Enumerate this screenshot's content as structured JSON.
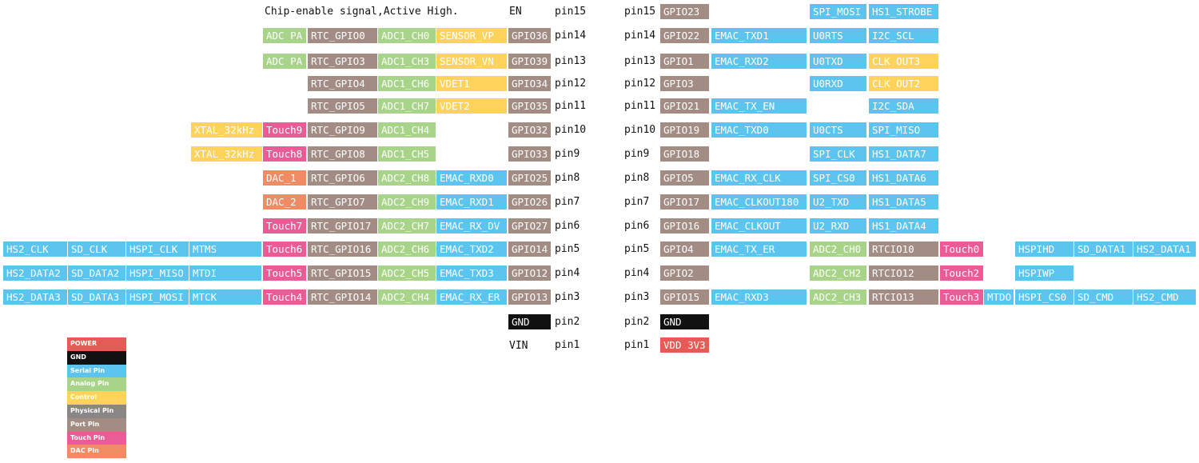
{
  "colors": {
    "power": "#e55b55",
    "gnd": "#111111",
    "serial": "#5bc4ef",
    "analog": "#a8d489",
    "control": "#fdd35c",
    "physical": "#8a8686",
    "port": "#a38c83",
    "touch": "#ea5c96",
    "dac": "#f08c64"
  },
  "header": {
    "chip_enable": "Chip-enable signal,Active High.",
    "en": "EN"
  },
  "left_side": {
    "vin": "VIN",
    "pins": [
      "pin15",
      "pin14",
      "pin13",
      "pin12",
      "pin11",
      "pin10",
      "pin9",
      "pin8",
      "pin7",
      "pin6",
      "pin5",
      "pin4",
      "pin3",
      "pin2",
      "pin1"
    ],
    "rows": [
      [],
      [
        [
          "ADC PA",
          "analog"
        ],
        [
          "RTC_GPIO0",
          "port"
        ],
        [
          "ADC1_CH0",
          "analog"
        ],
        [
          "SENSOR_VP",
          "control"
        ],
        [
          "GPIO36",
          "port"
        ]
      ],
      [
        [
          "ADC PA",
          "analog"
        ],
        [
          "RTC_GPIO3",
          "port"
        ],
        [
          "ADC1_CH3",
          "analog"
        ],
        [
          "SENSOR_VN",
          "control"
        ],
        [
          "GPIO39",
          "port"
        ]
      ],
      [
        [
          "RTC_GPIO4",
          "port"
        ],
        [
          "ADC1_CH6",
          "analog"
        ],
        [
          "VDET1",
          "control"
        ],
        [
          "GPIO34",
          "port"
        ]
      ],
      [
        [
          "RTC_GPIO5",
          "port"
        ],
        [
          "ADC1_CH7",
          "analog"
        ],
        [
          "VDET2",
          "control"
        ],
        [
          "GPIO35",
          "port"
        ]
      ],
      [
        [
          "XTAL_32kHz",
          "control"
        ],
        [
          "Touch9",
          "touch"
        ],
        [
          "RTC_GPIO9",
          "port"
        ],
        [
          "ADC1_CH4",
          "analog"
        ],
        [
          "GPIO32",
          "port"
        ]
      ],
      [
        [
          "XTAL_32kHz",
          "control"
        ],
        [
          "Touch8",
          "touch"
        ],
        [
          "RTC_GPIO8",
          "port"
        ],
        [
          "ADC1_CH5",
          "analog"
        ],
        [
          "GPIO33",
          "port"
        ]
      ],
      [
        [
          "DAC_1",
          "dac"
        ],
        [
          "RTC_GPIO6",
          "port"
        ],
        [
          "ADC2_CH8",
          "analog"
        ],
        [
          "EMAC_RXD0",
          "serial"
        ],
        [
          "GPIO25",
          "port"
        ]
      ],
      [
        [
          "DAC_2",
          "dac"
        ],
        [
          "RTC_GPIO7",
          "port"
        ],
        [
          "ADC2_CH9",
          "analog"
        ],
        [
          "EMAC_RXD1",
          "serial"
        ],
        [
          "GPIO26",
          "port"
        ]
      ],
      [
        [
          "Touch7",
          "touch"
        ],
        [
          "RTC_GPIO17",
          "port"
        ],
        [
          "ADC2_CH7",
          "analog"
        ],
        [
          "EMAC_RX_DV",
          "serial"
        ],
        [
          "GPIO27",
          "port"
        ]
      ],
      [
        [
          "HS2_CLK",
          "serial"
        ],
        [
          "SD_CLK",
          "serial"
        ],
        [
          "HSPI_CLK",
          "serial"
        ],
        [
          "MTMS",
          "serial"
        ],
        [
          "Touch6",
          "touch"
        ],
        [
          "RTC_GPIO16",
          "port"
        ],
        [
          "ADC2_CH6",
          "analog"
        ],
        [
          "EMAC_TXD2",
          "serial"
        ],
        [
          "GPIO14",
          "port"
        ]
      ],
      [
        [
          "HS2_DATA2",
          "serial"
        ],
        [
          "SD_DATA2",
          "serial"
        ],
        [
          "HSPI_MISO",
          "serial"
        ],
        [
          "MTDI",
          "serial"
        ],
        [
          "Touch5",
          "touch"
        ],
        [
          "RTC_GPIO15",
          "port"
        ],
        [
          "ADC2_CH5",
          "analog"
        ],
        [
          "EMAC_TXD3",
          "serial"
        ],
        [
          "GPIO12",
          "port"
        ]
      ],
      [
        [
          "HS2_DATA3",
          "serial"
        ],
        [
          "SD_DATA3",
          "serial"
        ],
        [
          "HSPI_MOSI",
          "serial"
        ],
        [
          "MTCK",
          "serial"
        ],
        [
          "Touch4",
          "touch"
        ],
        [
          "RTC_GPIO14",
          "port"
        ],
        [
          "ADC2_CH4",
          "analog"
        ],
        [
          "EMAC_RX_ER",
          "serial"
        ],
        [
          "GPIO13",
          "port"
        ]
      ],
      [
        [
          "GND",
          "gnd"
        ]
      ],
      []
    ]
  },
  "right_side": {
    "pins": [
      "pin15",
      "pin14",
      "pin13",
      "pin12",
      "pin11",
      "pin10",
      "pin9",
      "pin8",
      "pin7",
      "pin6",
      "pin5",
      "pin4",
      "pin3",
      "pin2",
      "pin1"
    ],
    "rows": [
      [
        [
          "GPIO23",
          "port"
        ],
        [
          "SPI_MOSI",
          "serial"
        ],
        [
          "HS1_STROBE",
          "serial"
        ]
      ],
      [
        [
          "GPIO22",
          "port"
        ],
        [
          "EMAC_TXD1",
          "serial"
        ],
        [
          "U0RTS",
          "serial"
        ],
        [
          "I2C_SCL",
          "serial"
        ]
      ],
      [
        [
          "GPIO1",
          "port"
        ],
        [
          "EMAC_RXD2",
          "serial"
        ],
        [
          "U0TXD",
          "serial"
        ],
        [
          "CLK OUT3",
          "control"
        ]
      ],
      [
        [
          "GPIO3",
          "port"
        ],
        [
          "U0RXD",
          "serial"
        ],
        [
          "CLK OUT2",
          "control"
        ]
      ],
      [
        [
          "GPIO21",
          "port"
        ],
        [
          "EMAC_TX_EN",
          "serial"
        ],
        [
          "I2C_SDA",
          "serial"
        ]
      ],
      [
        [
          "GPIO19",
          "port"
        ],
        [
          "EMAC_TXD0",
          "serial"
        ],
        [
          "U0CTS",
          "serial"
        ],
        [
          "SPI_MISO",
          "serial"
        ]
      ],
      [
        [
          "GPIO18",
          "port"
        ],
        [
          "SPI_CLK",
          "serial"
        ],
        [
          "HS1_DATA7",
          "serial"
        ]
      ],
      [
        [
          "GPIO5",
          "port"
        ],
        [
          "EMAC_RX_CLK",
          "serial"
        ],
        [
          "SPI_CS0",
          "serial"
        ],
        [
          "HS1_DATA6",
          "serial"
        ]
      ],
      [
        [
          "GPIO17",
          "port"
        ],
        [
          "EMAC_CLKOUT180",
          "serial"
        ],
        [
          "U2_TXD",
          "serial"
        ],
        [
          "HS1_DATA5",
          "serial"
        ]
      ],
      [
        [
          "GPIO16",
          "port"
        ],
        [
          "EMAC_CLKOUT",
          "serial"
        ],
        [
          "U2_RXD",
          "serial"
        ],
        [
          "HS1_DATA4",
          "serial"
        ]
      ],
      [
        [
          "GPIO4",
          "port"
        ],
        [
          "EMAC_TX_ER",
          "serial"
        ],
        [
          "ADC2_CH0",
          "analog"
        ],
        [
          "RTCIO10",
          "port"
        ],
        [
          "Touch0",
          "touch"
        ],
        [
          "HSPIHD",
          "serial"
        ],
        [
          "SD_DATA1",
          "serial"
        ],
        [
          "HS2_DATA1",
          "serial"
        ]
      ],
      [
        [
          "GPIO2",
          "port"
        ],
        [
          "ADC2_CH2",
          "analog"
        ],
        [
          "RTCIO12",
          "port"
        ],
        [
          "Touch2",
          "touch"
        ],
        [
          "HSPIWP",
          "serial"
        ]
      ],
      [
        [
          "GPIO15",
          "port"
        ],
        [
          "EMAC_RXD3",
          "serial"
        ],
        [
          "ADC2_CH3",
          "analog"
        ],
        [
          "RTCIO13",
          "port"
        ],
        [
          "Touch3",
          "touch"
        ],
        [
          "MTDO",
          "serial"
        ],
        [
          "HSPI_CS0",
          "serial"
        ],
        [
          "SD_CMD",
          "serial"
        ],
        [
          "HS2_CMD",
          "serial"
        ]
      ],
      [
        [
          "GND",
          "gnd"
        ]
      ],
      [
        [
          "VDD 3V3",
          "power"
        ]
      ]
    ]
  },
  "legend": [
    {
      "label": "POWER",
      "type": "power"
    },
    {
      "label": "GND",
      "type": "gnd"
    },
    {
      "label": "Serial Pin",
      "type": "serial"
    },
    {
      "label": "Analog Pin",
      "type": "analog"
    },
    {
      "label": "Control",
      "type": "control"
    },
    {
      "label": "Physical Pin",
      "type": "physical"
    },
    {
      "label": "Port Pin",
      "type": "port"
    },
    {
      "label": "Touch Pin",
      "type": "touch"
    },
    {
      "label": "DAC Pin",
      "type": "dac"
    }
  ]
}
